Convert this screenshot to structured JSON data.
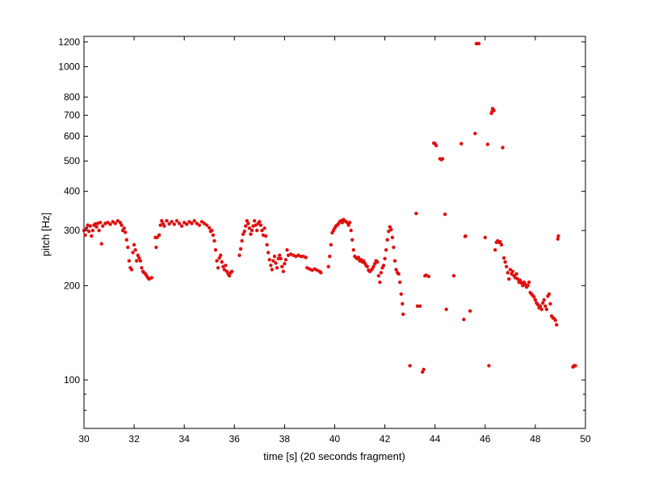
{
  "chart_data": {
    "type": "scatter",
    "xlabel": "time [s] (20 seconds fragment)",
    "ylabel": "pitch [Hz]",
    "xlim": [
      30,
      50
    ],
    "ylim": [
      70,
      1250
    ],
    "yscale": "log",
    "grid": false,
    "legend": "none",
    "marker_color": "#e01010",
    "x_ticks": [
      30,
      32,
      34,
      36,
      38,
      40,
      42,
      44,
      46,
      48,
      50
    ],
    "y_ticks": [
      100,
      200,
      300,
      400,
      500,
      600,
      700,
      800,
      1000,
      1200
    ],
    "y_minor_ticks": [
      80,
      90
    ],
    "series": [
      {
        "points": [
          [
            30.0,
            300
          ],
          [
            30.05,
            290
          ],
          [
            30.1,
            305
          ],
          [
            30.15,
            312
          ],
          [
            30.2,
            298
          ],
          [
            30.25,
            310
          ],
          [
            30.3,
            288
          ],
          [
            30.35,
            300
          ],
          [
            30.4,
            312
          ],
          [
            30.45,
            315
          ],
          [
            30.5,
            308
          ],
          [
            30.55,
            316
          ],
          [
            30.6,
            300
          ],
          [
            30.65,
            318
          ],
          [
            30.7,
            272
          ],
          [
            30.75,
            310
          ],
          [
            30.85,
            316
          ],
          [
            30.95,
            318
          ],
          [
            31.05,
            314
          ],
          [
            31.15,
            320
          ],
          [
            31.25,
            316
          ],
          [
            31.35,
            322
          ],
          [
            31.45,
            318
          ],
          [
            31.5,
            312
          ],
          [
            31.55,
            300
          ],
          [
            31.6,
            305
          ],
          [
            31.65,
            296
          ],
          [
            31.7,
            280
          ],
          [
            31.75,
            265
          ],
          [
            31.8,
            240
          ],
          [
            31.85,
            228
          ],
          [
            31.9,
            225
          ],
          [
            31.95,
            255
          ],
          [
            32.0,
            270
          ],
          [
            32.05,
            260
          ],
          [
            32.1,
            240
          ],
          [
            32.15,
            250
          ],
          [
            32.2,
            245
          ],
          [
            32.25,
            240
          ],
          [
            32.3,
            228
          ],
          [
            32.35,
            222
          ],
          [
            32.4,
            220
          ],
          [
            32.45,
            218
          ],
          [
            32.5,
            215
          ],
          [
            32.55,
            212
          ],
          [
            32.6,
            210
          ],
          [
            32.7,
            212
          ],
          [
            32.85,
            285
          ],
          [
            32.88,
            265
          ],
          [
            32.92,
            285
          ],
          [
            33.0,
            290
          ],
          [
            33.05,
            312
          ],
          [
            33.1,
            322
          ],
          [
            33.15,
            316
          ],
          [
            33.2,
            310
          ],
          [
            33.3,
            322
          ],
          [
            33.4,
            315
          ],
          [
            33.5,
            320
          ],
          [
            33.6,
            314
          ],
          [
            33.7,
            322
          ],
          [
            33.8,
            316
          ],
          [
            33.9,
            310
          ],
          [
            34.0,
            318
          ],
          [
            34.1,
            314
          ],
          [
            34.2,
            320
          ],
          [
            34.3,
            316
          ],
          [
            34.4,
            322
          ],
          [
            34.5,
            316
          ],
          [
            34.6,
            312
          ],
          [
            34.7,
            320
          ],
          [
            34.8,
            316
          ],
          [
            34.9,
            312
          ],
          [
            35.0,
            306
          ],
          [
            35.05,
            298
          ],
          [
            35.1,
            300
          ],
          [
            35.15,
            290
          ],
          [
            35.2,
            278
          ],
          [
            35.25,
            260
          ],
          [
            35.3,
            240
          ],
          [
            35.35,
            228
          ],
          [
            35.4,
            245
          ],
          [
            35.45,
            250
          ],
          [
            35.5,
            238
          ],
          [
            35.55,
            230
          ],
          [
            35.6,
            225
          ],
          [
            35.65,
            232
          ],
          [
            35.7,
            222
          ],
          [
            35.75,
            218
          ],
          [
            35.8,
            215
          ],
          [
            35.85,
            220
          ],
          [
            35.9,
            222
          ],
          [
            36.2,
            250
          ],
          [
            36.25,
            262
          ],
          [
            36.3,
            278
          ],
          [
            36.35,
            292
          ],
          [
            36.4,
            298
          ],
          [
            36.45,
            310
          ],
          [
            36.5,
            322
          ],
          [
            36.55,
            316
          ],
          [
            36.6,
            305
          ],
          [
            36.65,
            292
          ],
          [
            36.7,
            300
          ],
          [
            36.75,
            310
          ],
          [
            36.8,
            322
          ],
          [
            36.85,
            312
          ],
          [
            36.9,
            300
          ],
          [
            36.95,
            316
          ],
          [
            37.0,
            320
          ],
          [
            37.05,
            312
          ],
          [
            37.1,
            300
          ],
          [
            37.15,
            290
          ],
          [
            37.2,
            305
          ],
          [
            37.25,
            288
          ],
          [
            37.3,
            270
          ],
          [
            37.35,
            255
          ],
          [
            37.4,
            242
          ],
          [
            37.45,
            232
          ],
          [
            37.5,
            225
          ],
          [
            37.55,
            240
          ],
          [
            37.6,
            248
          ],
          [
            37.65,
            236
          ],
          [
            37.7,
            228
          ],
          [
            37.75,
            244
          ],
          [
            37.8,
            250
          ],
          [
            37.85,
            244
          ],
          [
            37.9,
            230
          ],
          [
            37.95,
            222
          ],
          [
            38.0,
            235
          ],
          [
            38.05,
            242
          ],
          [
            38.1,
            260
          ],
          [
            38.15,
            250
          ],
          [
            38.25,
            252
          ],
          [
            38.35,
            250
          ],
          [
            38.45,
            248
          ],
          [
            38.55,
            250
          ],
          [
            38.65,
            248
          ],
          [
            38.75,
            248
          ],
          [
            38.85,
            246
          ],
          [
            38.9,
            228
          ],
          [
            39.0,
            226
          ],
          [
            39.1,
            224
          ],
          [
            39.2,
            226
          ],
          [
            39.3,
            224
          ],
          [
            39.4,
            222
          ],
          [
            39.45,
            220
          ],
          [
            39.75,
            230
          ],
          [
            39.8,
            248
          ],
          [
            39.85,
            270
          ],
          [
            39.9,
            295
          ],
          [
            39.95,
            300
          ],
          [
            40.0,
            305
          ],
          [
            40.05,
            310
          ],
          [
            40.1,
            312
          ],
          [
            40.15,
            315
          ],
          [
            40.2,
            320
          ],
          [
            40.25,
            322
          ],
          [
            40.3,
            318
          ],
          [
            40.35,
            325
          ],
          [
            40.4,
            322
          ],
          [
            40.45,
            320
          ],
          [
            40.5,
            318
          ],
          [
            40.55,
            312
          ],
          [
            40.6,
            318
          ],
          [
            40.65,
            300
          ],
          [
            40.7,
            280
          ],
          [
            40.75,
            260
          ],
          [
            40.8,
            248
          ],
          [
            40.85,
            246
          ],
          [
            40.9,
            244
          ],
          [
            40.95,
            246
          ],
          [
            41.0,
            240
          ],
          [
            41.05,
            242
          ],
          [
            41.1,
            238
          ],
          [
            41.15,
            240
          ],
          [
            41.2,
            236
          ],
          [
            41.25,
            232
          ],
          [
            41.3,
            230
          ],
          [
            41.35,
            224
          ],
          [
            41.4,
            222
          ],
          [
            41.45,
            224
          ],
          [
            41.5,
            226
          ],
          [
            41.55,
            230
          ],
          [
            41.6,
            235
          ],
          [
            41.65,
            240
          ],
          [
            41.7,
            238
          ],
          [
            41.75,
            215
          ],
          [
            41.8,
            205
          ],
          [
            41.85,
            220
          ],
          [
            41.9,
            228
          ],
          [
            41.95,
            232
          ],
          [
            42.0,
            244
          ],
          [
            42.05,
            260
          ],
          [
            42.1,
            280
          ],
          [
            42.15,
            298
          ],
          [
            42.2,
            308
          ],
          [
            42.25,
            302
          ],
          [
            42.3,
            285
          ],
          [
            42.35,
            265
          ],
          [
            42.4,
            240
          ],
          [
            42.45,
            225
          ],
          [
            42.5,
            220
          ],
          [
            42.55,
            218
          ],
          [
            42.6,
            205
          ],
          [
            42.65,
            188
          ],
          [
            42.7,
            175
          ],
          [
            42.73,
            162
          ],
          [
            43.0,
            111
          ],
          [
            43.25,
            340
          ],
          [
            43.3,
            172
          ],
          [
            43.4,
            172
          ],
          [
            43.5,
            106
          ],
          [
            43.55,
            108
          ],
          [
            43.6,
            215
          ],
          [
            43.65,
            216
          ],
          [
            43.75,
            214
          ],
          [
            43.95,
            570
          ],
          [
            44.0,
            568
          ],
          [
            44.05,
            560
          ],
          [
            44.2,
            508
          ],
          [
            44.25,
            505
          ],
          [
            44.3,
            508
          ],
          [
            44.4,
            338
          ],
          [
            44.45,
            168
          ],
          [
            44.75,
            215
          ],
          [
            45.05,
            568
          ],
          [
            45.15,
            156
          ],
          [
            45.2,
            287
          ],
          [
            45.22,
            288
          ],
          [
            45.4,
            166
          ],
          [
            45.6,
            612
          ],
          [
            45.65,
            1185
          ],
          [
            45.7,
            1185
          ],
          [
            45.75,
            1185
          ],
          [
            46.0,
            285
          ],
          [
            46.1,
            565
          ],
          [
            46.15,
            111
          ],
          [
            46.25,
            710
          ],
          [
            46.28,
            720
          ],
          [
            46.3,
            735
          ],
          [
            46.35,
            725
          ],
          [
            46.4,
            260
          ],
          [
            46.45,
            275
          ],
          [
            46.5,
            278
          ],
          [
            46.55,
            275
          ],
          [
            46.6,
            276
          ],
          [
            46.65,
            270
          ],
          [
            46.7,
            552
          ],
          [
            46.75,
            245
          ],
          [
            46.8,
            238
          ],
          [
            46.85,
            230
          ],
          [
            46.9,
            220
          ],
          [
            46.95,
            210
          ],
          [
            47.0,
            225
          ],
          [
            47.05,
            218
          ],
          [
            47.1,
            222
          ],
          [
            47.15,
            215
          ],
          [
            47.2,
            212
          ],
          [
            47.25,
            218
          ],
          [
            47.3,
            210
          ],
          [
            47.35,
            205
          ],
          [
            47.4,
            208
          ],
          [
            47.45,
            204
          ],
          [
            47.5,
            200
          ],
          [
            47.55,
            205
          ],
          [
            47.6,
            202
          ],
          [
            47.65,
            198
          ],
          [
            47.7,
            200
          ],
          [
            47.75,
            205
          ],
          [
            47.8,
            190
          ],
          [
            47.85,
            188
          ],
          [
            47.9,
            186
          ],
          [
            47.95,
            184
          ],
          [
            48.0,
            180
          ],
          [
            48.05,
            176
          ],
          [
            48.1,
            174
          ],
          [
            48.15,
            170
          ],
          [
            48.2,
            172
          ],
          [
            48.25,
            168
          ],
          [
            48.3,
            176
          ],
          [
            48.35,
            180
          ],
          [
            48.4,
            172
          ],
          [
            48.45,
            168
          ],
          [
            48.5,
            185
          ],
          [
            48.55,
            188
          ],
          [
            48.6,
            175
          ],
          [
            48.65,
            160
          ],
          [
            48.7,
            158
          ],
          [
            48.75,
            157
          ],
          [
            48.8,
            155
          ],
          [
            48.85,
            150
          ],
          [
            48.9,
            282
          ],
          [
            48.92,
            288
          ],
          [
            49.5,
            110
          ],
          [
            49.55,
            111
          ],
          [
            49.6,
            111
          ]
        ]
      }
    ]
  }
}
